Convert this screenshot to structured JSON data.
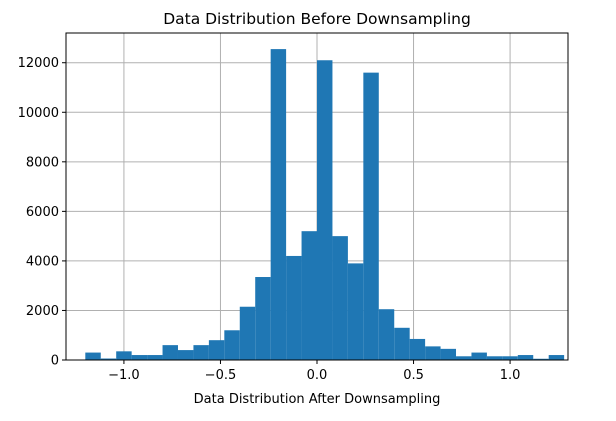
{
  "chart_data": {
    "type": "bar",
    "title": "Data Distribution Before Downsampling",
    "xlabel": "Data Distribution After Downsampling",
    "ylabel": "",
    "xlim": [
      -1.3,
      1.3
    ],
    "ylim": [
      0,
      13200
    ],
    "grid": true,
    "color": "#1f77b4",
    "grid_color": "#b0b0b0",
    "xticks": [
      {
        "value": -1.0,
        "label": "−1.0"
      },
      {
        "value": -0.5,
        "label": "−0.5"
      },
      {
        "value": 0.0,
        "label": "0.0"
      },
      {
        "value": 0.5,
        "label": "0.5"
      },
      {
        "value": 1.0,
        "label": "1.0"
      }
    ],
    "yticks": [
      {
        "value": 0,
        "label": "0"
      },
      {
        "value": 2000,
        "label": "2000"
      },
      {
        "value": 4000,
        "label": "4000"
      },
      {
        "value": 6000,
        "label": "6000"
      },
      {
        "value": 8000,
        "label": "8000"
      },
      {
        "value": 10000,
        "label": "10000"
      },
      {
        "value": 12000,
        "label": "12000"
      }
    ],
    "bins": [
      {
        "x0": -1.2,
        "x1": -1.12,
        "value": 300
      },
      {
        "x0": -1.12,
        "x1": -1.04,
        "value": 60
      },
      {
        "x0": -1.04,
        "x1": -0.96,
        "value": 350
      },
      {
        "x0": -0.96,
        "x1": -0.88,
        "value": 200
      },
      {
        "x0": -0.88,
        "x1": -0.8,
        "value": 200
      },
      {
        "x0": -0.8,
        "x1": -0.72,
        "value": 600
      },
      {
        "x0": -0.72,
        "x1": -0.64,
        "value": 400
      },
      {
        "x0": -0.64,
        "x1": -0.56,
        "value": 600
      },
      {
        "x0": -0.56,
        "x1": -0.48,
        "value": 800
      },
      {
        "x0": -0.48,
        "x1": -0.4,
        "value": 1200
      },
      {
        "x0": -0.4,
        "x1": -0.32,
        "value": 2150
      },
      {
        "x0": -0.32,
        "x1": -0.24,
        "value": 3350
      },
      {
        "x0": -0.24,
        "x1": -0.16,
        "value": 12550
      },
      {
        "x0": -0.16,
        "x1": -0.08,
        "value": 4200
      },
      {
        "x0": -0.08,
        "x1": 0.0,
        "value": 5200
      },
      {
        "x0": 0.0,
        "x1": 0.08,
        "value": 12100
      },
      {
        "x0": 0.08,
        "x1": 0.16,
        "value": 5000
      },
      {
        "x0": 0.16,
        "x1": 0.24,
        "value": 3900
      },
      {
        "x0": 0.24,
        "x1": 0.32,
        "value": 11600
      },
      {
        "x0": 0.32,
        "x1": 0.4,
        "value": 2050
      },
      {
        "x0": 0.4,
        "x1": 0.48,
        "value": 1300
      },
      {
        "x0": 0.48,
        "x1": 0.56,
        "value": 850
      },
      {
        "x0": 0.56,
        "x1": 0.64,
        "value": 550
      },
      {
        "x0": 0.64,
        "x1": 0.72,
        "value": 450
      },
      {
        "x0": 0.72,
        "x1": 0.8,
        "value": 150
      },
      {
        "x0": 0.8,
        "x1": 0.88,
        "value": 300
      },
      {
        "x0": 0.88,
        "x1": 0.96,
        "value": 150
      },
      {
        "x0": 0.96,
        "x1": 1.04,
        "value": 150
      },
      {
        "x0": 1.04,
        "x1": 1.12,
        "value": 200
      },
      {
        "x0": 1.12,
        "x1": 1.2,
        "value": 50
      },
      {
        "x0": 1.2,
        "x1": 1.28,
        "value": 200
      }
    ]
  }
}
